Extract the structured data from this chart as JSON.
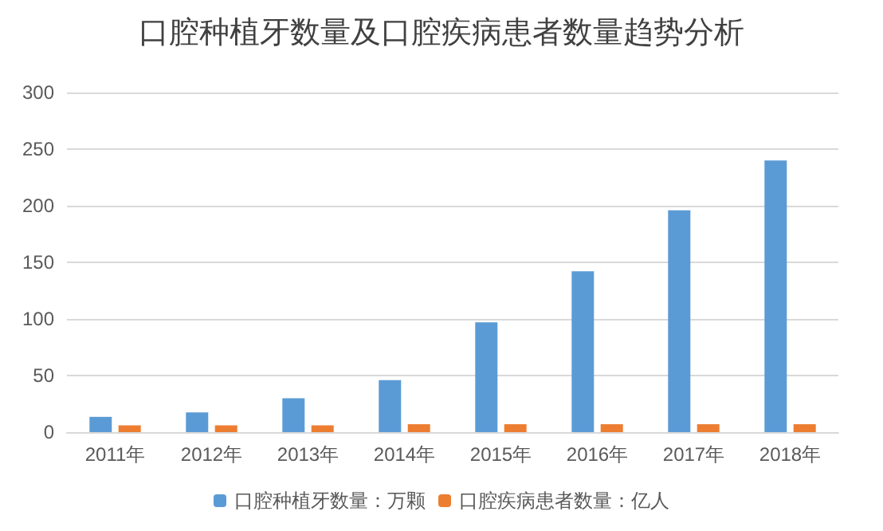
{
  "chart_data": {
    "type": "bar",
    "title": "口腔种植牙数量及口腔疾病患者数量趋势分析",
    "categories": [
      "2011年",
      "2012年",
      "2013年",
      "2014年",
      "2015年",
      "2016年",
      "2017年",
      "2018年"
    ],
    "series": [
      {
        "name": "口腔种植牙数量：万颗",
        "color": "#5b9bd5",
        "values": [
          13.5,
          17.5,
          30,
          46,
          97,
          142,
          196,
          240
        ]
      },
      {
        "name": "口腔疾病患者数量：亿人",
        "color": "#ed7d31",
        "values": [
          6,
          6,
          6,
          7,
          7,
          7,
          7,
          7
        ]
      }
    ],
    "ylim": [
      0,
      300
    ],
    "yticks": [
      0,
      50,
      100,
      150,
      200,
      250,
      300
    ],
    "grid": "y",
    "legend": "bottom"
  }
}
